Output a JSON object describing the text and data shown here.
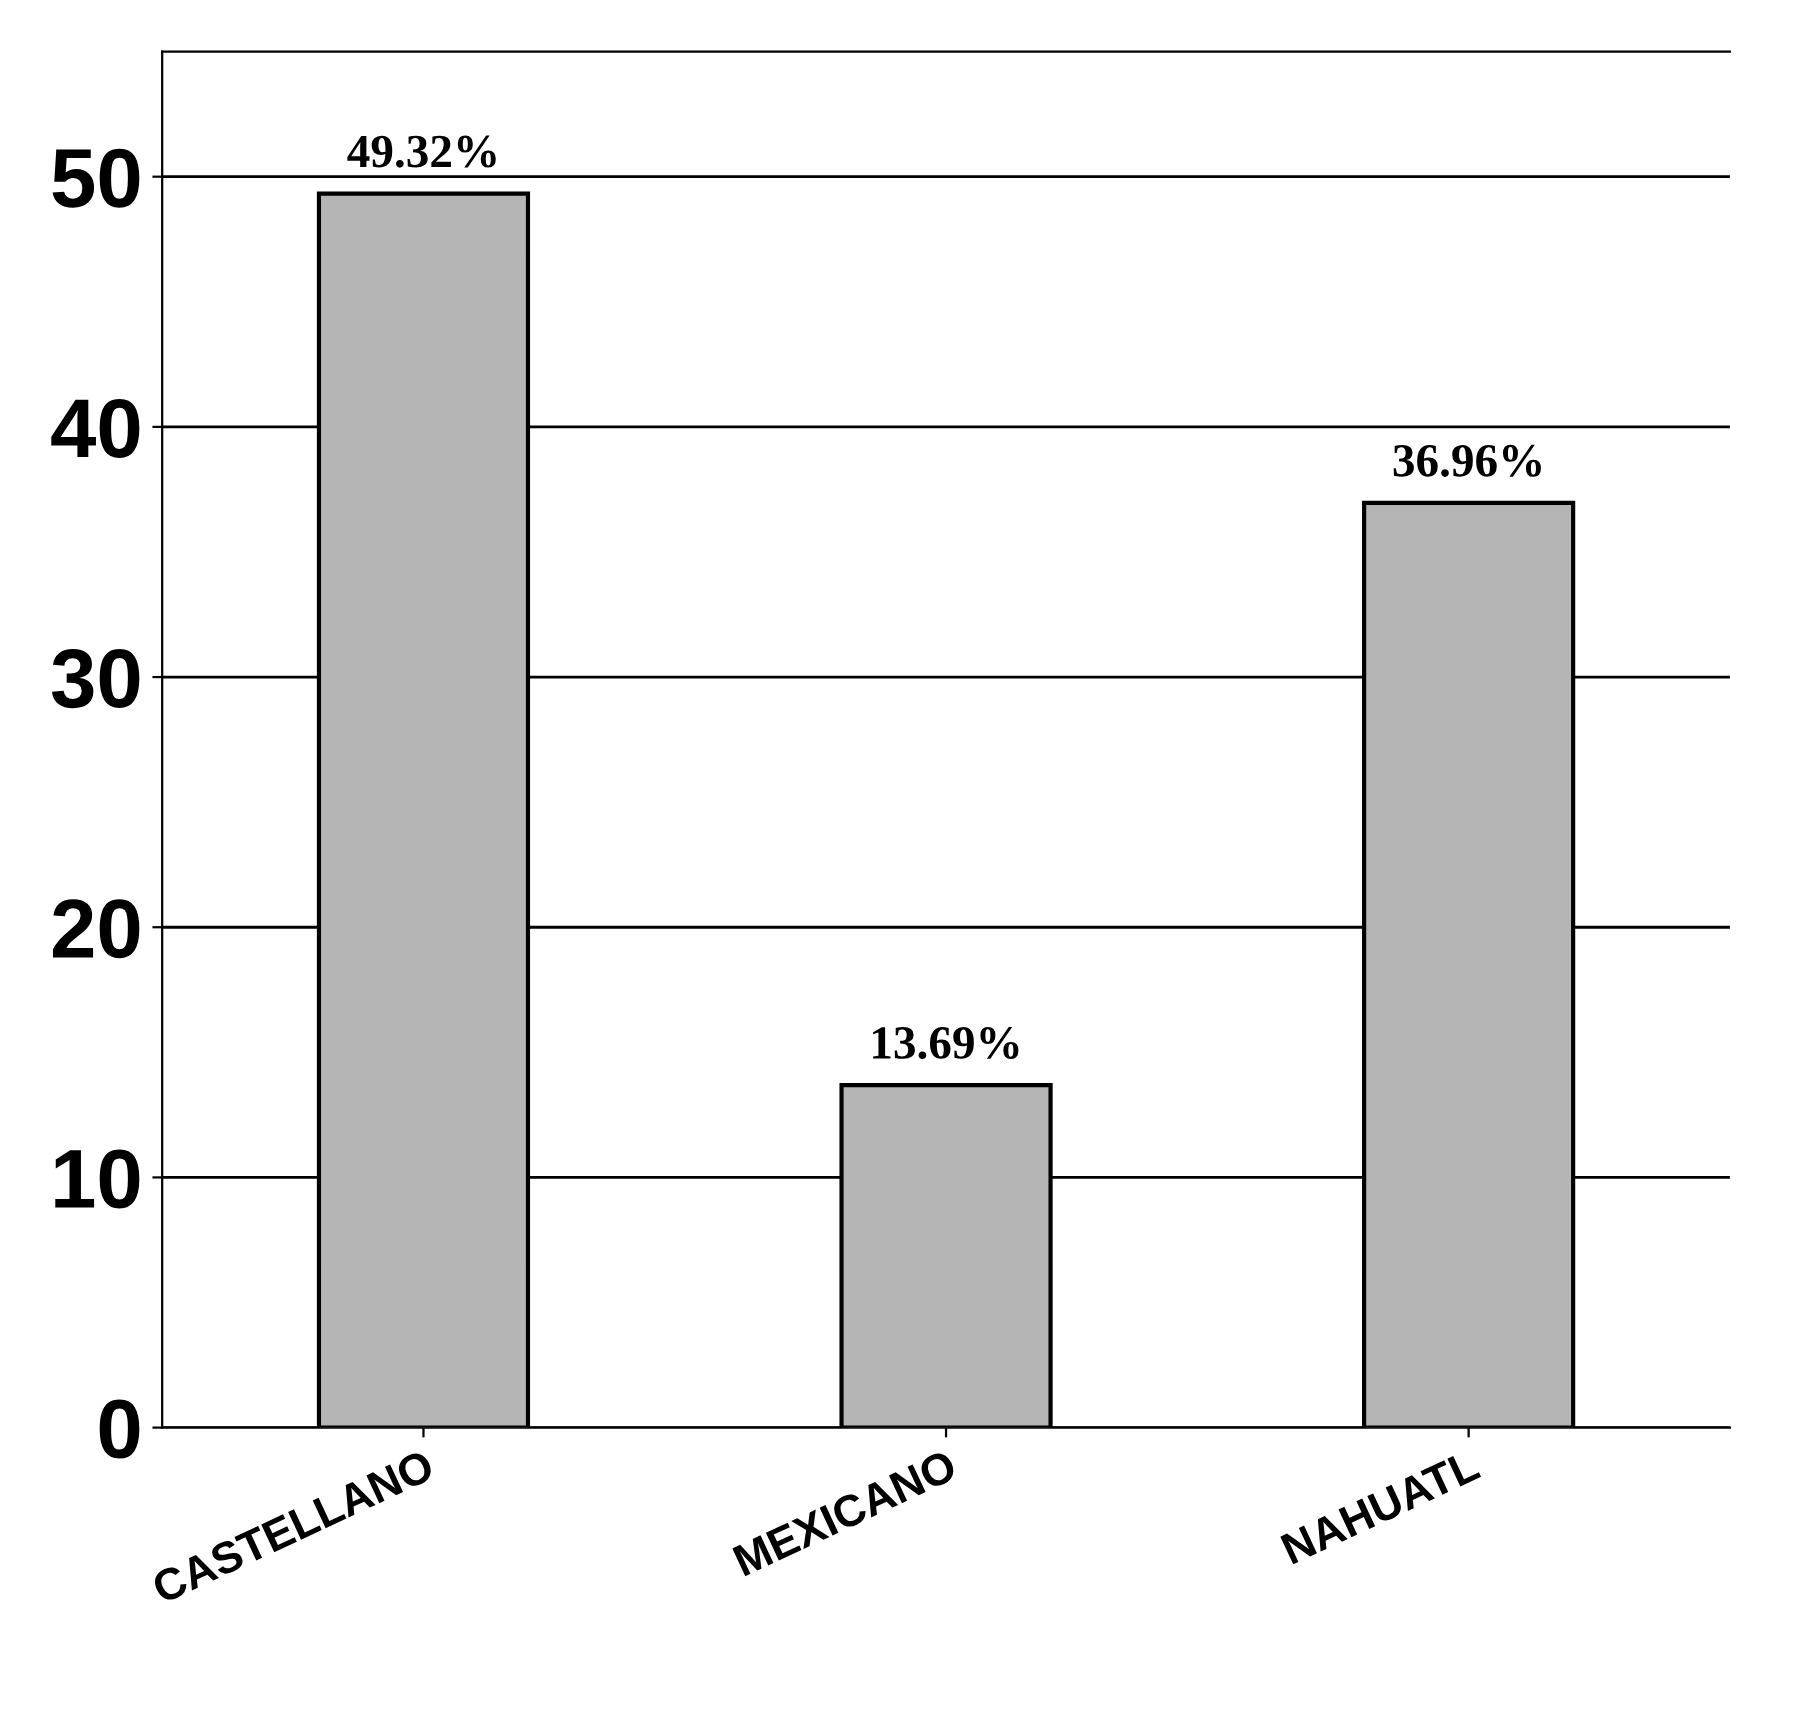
{
  "chart_data": {
    "type": "bar",
    "categories": [
      "CASTELLANO",
      "MEXICANO",
      "NAHUATL"
    ],
    "values": [
      49.32,
      13.69,
      36.96
    ],
    "value_labels": [
      "49.32%",
      "13.69%",
      "36.96%"
    ],
    "color": "#b5b5b5",
    "ylim": [
      0,
      55
    ],
    "yticks": [
      0,
      10,
      20,
      30,
      40,
      50
    ],
    "grid": "y"
  }
}
